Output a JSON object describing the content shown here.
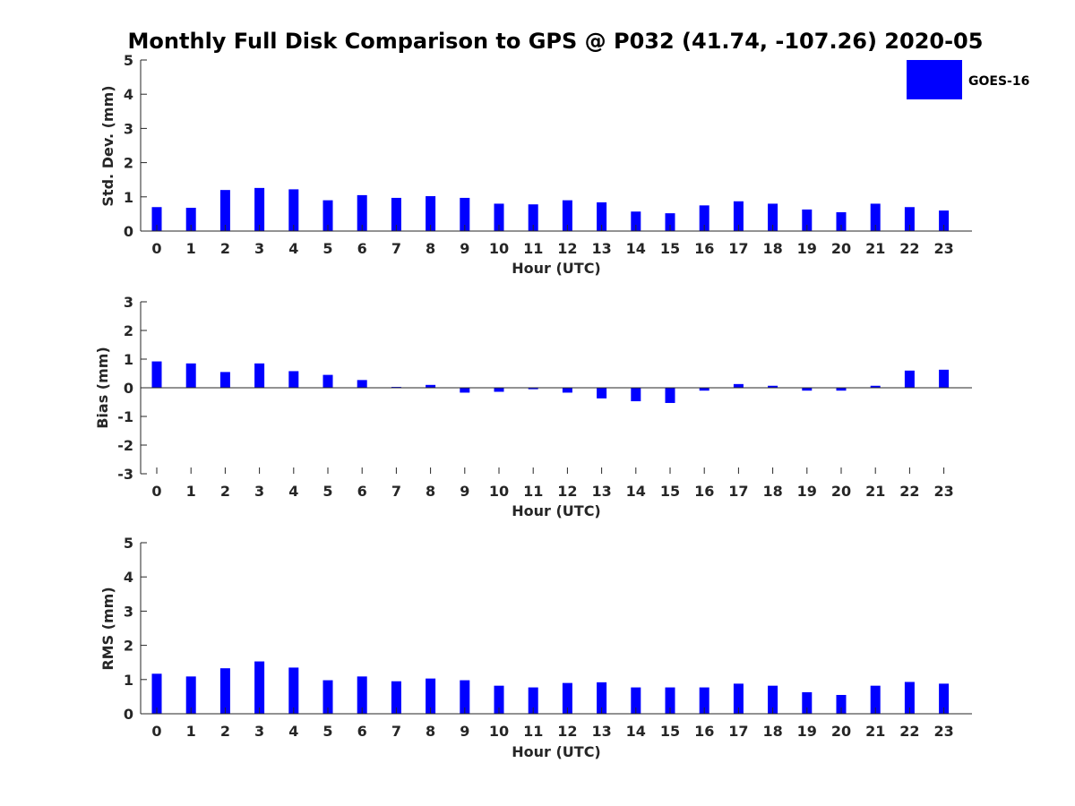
{
  "title": "Monthly Full Disk Comparison to GPS @ P032 (41.74, -107.26) 2020-05",
  "legend": {
    "label": "GOES-16",
    "color": "#0000ff",
    "placement": "top-right"
  },
  "chart_data": [
    {
      "type": "bar",
      "title": "Monthly Full Disk Comparison to GPS @ P032 (41.74, -107.26) 2020-05",
      "xlabel": "Hour (UTC)",
      "ylabel": "Std. Dev. (mm)",
      "categories": [
        "0",
        "1",
        "2",
        "3",
        "4",
        "5",
        "6",
        "7",
        "8",
        "9",
        "10",
        "11",
        "12",
        "13",
        "14",
        "15",
        "16",
        "17",
        "18",
        "19",
        "20",
        "21",
        "22",
        "23"
      ],
      "series": [
        {
          "name": "GOES-16",
          "values": [
            0.7,
            0.68,
            1.2,
            1.26,
            1.22,
            0.9,
            1.05,
            0.97,
            1.02,
            0.97,
            0.8,
            0.78,
            0.9,
            0.84,
            0.57,
            0.52,
            0.75,
            0.87,
            0.8,
            0.63,
            0.55,
            0.8,
            0.7,
            0.6
          ]
        }
      ],
      "ylim": [
        0,
        5
      ],
      "yticks": [
        "0",
        "1",
        "2",
        "3",
        "4",
        "5"
      ],
      "color": "#0000ff"
    },
    {
      "type": "bar",
      "xlabel": "Hour (UTC)",
      "ylabel": "Bias (mm)",
      "categories": [
        "0",
        "1",
        "2",
        "3",
        "4",
        "5",
        "6",
        "7",
        "8",
        "9",
        "10",
        "11",
        "12",
        "13",
        "14",
        "15",
        "16",
        "17",
        "18",
        "19",
        "20",
        "21",
        "22",
        "23"
      ],
      "series": [
        {
          "name": "GOES-16",
          "values": [
            0.92,
            0.85,
            0.55,
            0.85,
            0.58,
            0.45,
            0.27,
            0.03,
            0.1,
            -0.17,
            -0.14,
            -0.05,
            -0.17,
            -0.37,
            -0.47,
            -0.53,
            -0.1,
            0.13,
            0.07,
            -0.1,
            -0.1,
            0.07,
            0.6,
            0.63
          ]
        }
      ],
      "ylim": [
        -3,
        3
      ],
      "yticks": [
        "-3",
        "-2",
        "-1",
        "0",
        "1",
        "2",
        "3"
      ],
      "color": "#0000ff"
    },
    {
      "type": "bar",
      "xlabel": "Hour (UTC)",
      "ylabel": "RMS (mm)",
      "categories": [
        "0",
        "1",
        "2",
        "3",
        "4",
        "5",
        "6",
        "7",
        "8",
        "9",
        "10",
        "11",
        "12",
        "13",
        "14",
        "15",
        "16",
        "17",
        "18",
        "19",
        "20",
        "21",
        "22",
        "23"
      ],
      "series": [
        {
          "name": "GOES-16",
          "values": [
            1.17,
            1.09,
            1.33,
            1.53,
            1.35,
            0.98,
            1.09,
            0.95,
            1.03,
            0.98,
            0.82,
            0.77,
            0.9,
            0.92,
            0.77,
            0.77,
            0.77,
            0.88,
            0.82,
            0.63,
            0.55,
            0.82,
            0.93,
            0.88
          ]
        }
      ],
      "ylim": [
        0,
        5
      ],
      "yticks": [
        "0",
        "1",
        "2",
        "3",
        "4",
        "5"
      ],
      "color": "#0000ff"
    }
  ]
}
